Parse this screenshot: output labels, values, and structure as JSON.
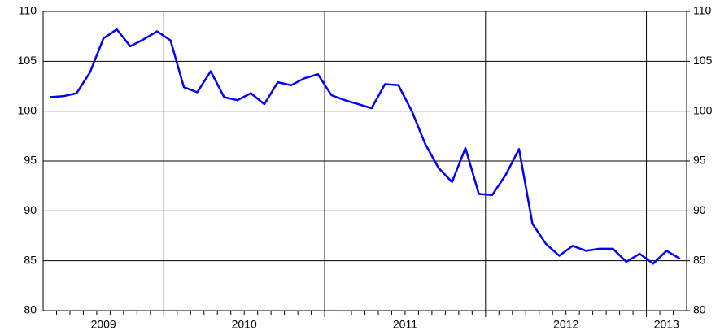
{
  "chart_data": {
    "type": "line",
    "x_labels": [
      "2009",
      "2010",
      "2011",
      "2012",
      "2013"
    ],
    "series": [
      {
        "color": "#0000ff",
        "values": [
          101.4,
          101.5,
          101.8,
          103.9,
          107.3,
          108.2,
          106.5,
          107.2,
          108.0,
          107.1,
          102.4,
          101.9,
          104.0,
          101.4,
          101.1,
          101.8,
          100.7,
          102.9,
          102.6,
          103.3,
          103.7,
          101.6,
          101.1,
          100.7,
          100.3,
          102.7,
          102.6,
          100.0,
          96.7,
          94.3,
          92.9,
          96.3,
          91.7,
          91.6,
          93.6,
          96.2,
          88.7,
          86.7,
          85.5,
          86.5,
          86.0,
          86.2,
          86.2,
          84.9,
          85.7,
          84.7,
          86.0,
          85.2
        ]
      }
    ],
    "ylim": [
      80,
      110
    ],
    "yticks": [
      80,
      85,
      90,
      95,
      100,
      105,
      110
    ],
    "y2lim": [
      80,
      110
    ],
    "y2ticks": [
      80,
      85,
      90,
      95,
      100,
      105,
      110
    ],
    "grid": true
  }
}
